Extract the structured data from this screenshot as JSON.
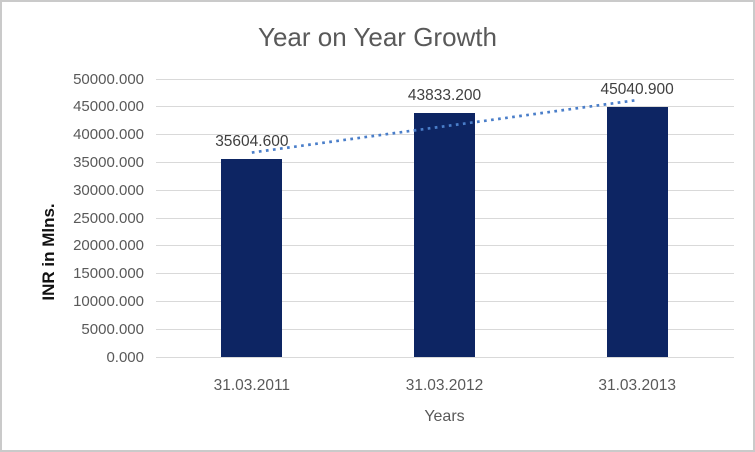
{
  "page": {
    "background": "#ffffff",
    "frame_border_color": "#cacaca"
  },
  "chart_data": {
    "type": "bar",
    "title": "Year on Year Growth",
    "xlabel": "Years",
    "ylabel": "INR in Mlns.",
    "categories": [
      "31.03.2011",
      "31.03.2012",
      "31.03.2013"
    ],
    "values": [
      35604.6,
      43833.2,
      45040.9
    ],
    "data_labels": [
      "35604.600",
      "43833.200",
      "45040.900"
    ],
    "ylim": [
      0,
      50000
    ],
    "ytick_step": 5000,
    "ytick_labels": [
      "0.000",
      "5000.000",
      "10000.000",
      "15000.000",
      "20000.000",
      "25000.000",
      "30000.000",
      "35000.000",
      "40000.000",
      "45000.000",
      "50000.000"
    ],
    "grid": true,
    "legend": false,
    "bar_color": "#0d2563",
    "gridline_color": "#d9d9d9",
    "title_color": "#595959",
    "axis_text_color": "#595959",
    "data_label_color": "#3f3f3f",
    "trendline": {
      "style": "dotted",
      "color": "#4a7ec9",
      "start_value": 36774.8,
      "end_value": 46211.1
    }
  }
}
